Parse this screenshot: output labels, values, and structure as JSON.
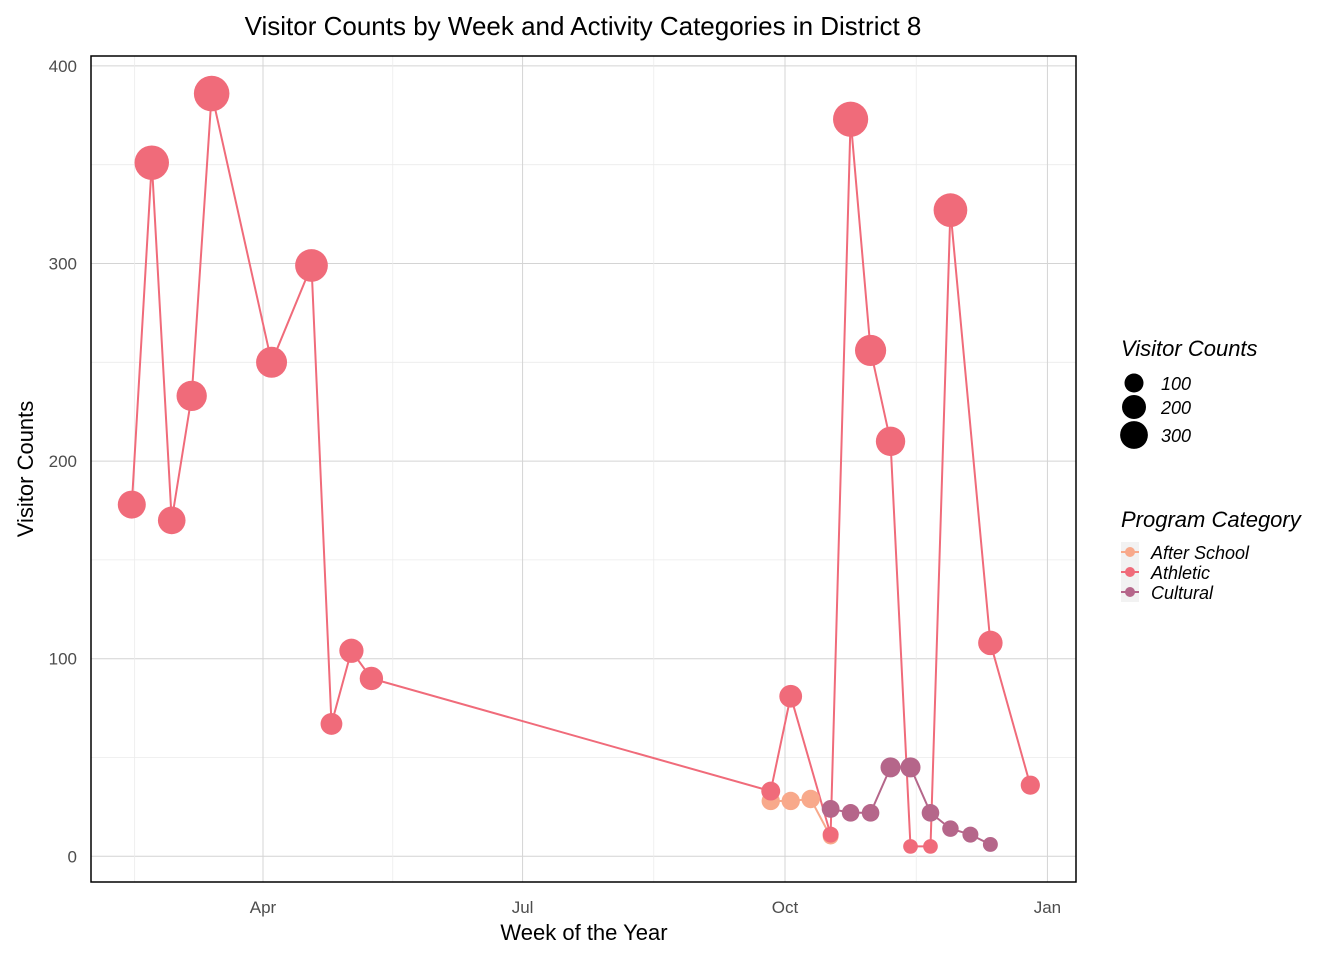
{
  "chart_data": {
    "type": "line",
    "title": "Visitor Counts by Week and Activity Categories in District 8",
    "xlabel": "Week of the Year",
    "ylabel": "Visitor Counts",
    "x_ticks": [
      "Apr",
      "Jul",
      "Oct",
      "Jan"
    ],
    "y_ticks": [
      0,
      100,
      200,
      300,
      400
    ],
    "ylim": [
      -13,
      405
    ],
    "grid": true,
    "legend_position": "right",
    "size_legend": {
      "title": "Visitor Counts",
      "entries": [
        100,
        200,
        300
      ]
    },
    "color_legend": {
      "title": "Program Category"
    },
    "series": [
      {
        "name": "After School",
        "color": "#F8A98B",
        "points": [
          {
            "x": "2023-09-26",
            "y": 28
          },
          {
            "x": "2023-10-03",
            "y": 28
          },
          {
            "x": "2023-10-10",
            "y": 29
          },
          {
            "x": "2023-10-17",
            "y": 10
          }
        ]
      },
      {
        "name": "Athletic",
        "color": "#F06B7A",
        "points": [
          {
            "x": "2023-02-14",
            "y": 178
          },
          {
            "x": "2023-02-21",
            "y": 351
          },
          {
            "x": "2023-02-28",
            "y": 170
          },
          {
            "x": "2023-03-07",
            "y": 233
          },
          {
            "x": "2023-03-14",
            "y": 386
          },
          {
            "x": "2023-04-04",
            "y": 250
          },
          {
            "x": "2023-04-18",
            "y": 299
          },
          {
            "x": "2023-04-25",
            "y": 67
          },
          {
            "x": "2023-05-02",
            "y": 104
          },
          {
            "x": "2023-05-09",
            "y": 90
          },
          {
            "x": "2023-09-26",
            "y": 33
          },
          {
            "x": "2023-10-03",
            "y": 81
          },
          {
            "x": "2023-10-17",
            "y": 11
          },
          {
            "x": "2023-10-24",
            "y": 373
          },
          {
            "x": "2023-10-31",
            "y": 256
          },
          {
            "x": "2023-11-07",
            "y": 210
          },
          {
            "x": "2023-11-14",
            "y": 5
          },
          {
            "x": "2023-11-21",
            "y": 5
          },
          {
            "x": "2023-11-28",
            "y": 327
          },
          {
            "x": "2023-12-12",
            "y": 108
          },
          {
            "x": "2023-12-26",
            "y": 36
          }
        ]
      },
      {
        "name": "Cultural",
        "color": "#B5668A",
        "points": [
          {
            "x": "2023-10-17",
            "y": 24
          },
          {
            "x": "2023-10-24",
            "y": 22
          },
          {
            "x": "2023-10-31",
            "y": 22
          },
          {
            "x": "2023-11-07",
            "y": 45
          },
          {
            "x": "2023-11-14",
            "y": 45
          },
          {
            "x": "2023-11-21",
            "y": 22
          },
          {
            "x": "2023-11-28",
            "y": 14
          },
          {
            "x": "2023-12-05",
            "y": 11
          },
          {
            "x": "2023-12-12",
            "y": 6
          }
        ]
      }
    ]
  }
}
